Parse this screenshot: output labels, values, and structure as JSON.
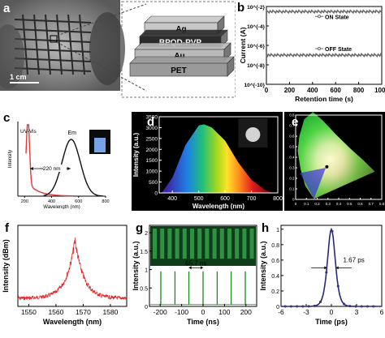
{
  "figure": {
    "panel_labels": [
      "a",
      "b",
      "c",
      "d",
      "e",
      "f",
      "g",
      "h"
    ]
  },
  "panel_a": {
    "scale_bar": "1 cm",
    "layers": [
      "Ag",
      "BPQD-PVP",
      "Au",
      "PET"
    ],
    "layer_colors": [
      "#c8c8c8",
      "#2b2b2b",
      "#b9b9b9",
      "#9a9a9a"
    ]
  },
  "chart_data": [
    {
      "id": "b",
      "type": "scatter",
      "xlabel": "Retention time (s)",
      "ylabel": "Current (A)",
      "xlim": [
        0,
        1000
      ],
      "x_ticks": [
        0,
        200,
        400,
        600,
        800,
        1000
      ],
      "y_scale": "log",
      "y_ticks": [
        "10^{-2}",
        "10^{-4}",
        "10^{-6}",
        "10^{-8}",
        "10^{-10}"
      ],
      "series": [
        {
          "name": "ON State",
          "color": "#6b6b6b",
          "level": "0.003"
        },
        {
          "name": "OFF State",
          "color": "#6b6b6b",
          "level": "0.0000001"
        }
      ]
    },
    {
      "id": "c",
      "type": "line",
      "xlabel": "Wavelength (nm)",
      "ylabel": "Intensity",
      "annotations": [
        "UV-Vis",
        "Em",
        "~220 nm"
      ],
      "x_ticks": [
        200,
        400,
        600,
        800
      ],
      "series": [
        {
          "name": "UV-Vis",
          "color": "#e03a3a"
        },
        {
          "name": "Em",
          "color": "#111111"
        }
      ]
    },
    {
      "id": "d",
      "type": "area",
      "xlabel": "Wavelength (nm)",
      "ylabel": "Intensity (a.u.)",
      "xlim": [
        350,
        800
      ],
      "ylim": [
        0,
        3500
      ],
      "x_ticks": [
        400,
        500,
        600,
        700,
        800
      ],
      "y_ticks": [
        0,
        500,
        1000,
        1500,
        2000,
        2500,
        3000,
        3500
      ],
      "x": [
        360,
        400,
        450,
        500,
        520,
        550,
        600,
        650,
        700,
        750,
        780
      ],
      "y": [
        0,
        700,
        2200,
        3100,
        3150,
        3000,
        2400,
        1400,
        600,
        150,
        0
      ],
      "background": "#000000"
    },
    {
      "id": "e",
      "type": "scatter",
      "x_ticks": [
        0.0,
        0.1,
        0.2,
        0.3,
        0.4,
        0.5,
        0.6,
        0.7,
        0.8
      ],
      "y_ticks": [
        0.0,
        0.1,
        0.2,
        0.3,
        0.4,
        0.5,
        0.6,
        0.7,
        0.8
      ],
      "point": {
        "x": 0.29,
        "y": 0.31
      },
      "background": "#000000"
    },
    {
      "id": "f",
      "type": "line",
      "xlabel": "Wavelength (nm)",
      "ylabel": "Intensity (dBm)",
      "xlim": [
        1546,
        1586
      ],
      "x_ticks": [
        1550,
        1560,
        1570,
        1580
      ],
      "peak_x": 1567,
      "color": "#e02020"
    },
    {
      "id": "g",
      "type": "line",
      "xlabel": "Time (ns)",
      "ylabel": "Intensity (a.u.)",
      "xlim": [
        -250,
        250
      ],
      "x_ticks": [
        -200,
        -100,
        0,
        100,
        200
      ],
      "y_ticks": [
        0.0,
        0.5,
        1.0,
        1.5,
        2.0
      ],
      "pulse_x": [
        -197,
        -131,
        -66,
        0,
        66,
        131,
        197
      ],
      "annotation": "65.7 ns",
      "color": "#1a8a1a"
    },
    {
      "id": "h",
      "type": "line",
      "xlabel": "Time (ps)",
      "ylabel": "Intensity (a.u.)",
      "xlim": [
        -6,
        6
      ],
      "ylim": [
        0,
        1.05
      ],
      "x_ticks": [
        -6,
        -3,
        0,
        3,
        6
      ],
      "y_ticks": [
        0.0,
        0.2,
        0.4,
        0.6,
        0.8,
        1.0
      ],
      "fwhm_label": "1.67 ps",
      "color": "#2a2a7a"
    }
  ]
}
